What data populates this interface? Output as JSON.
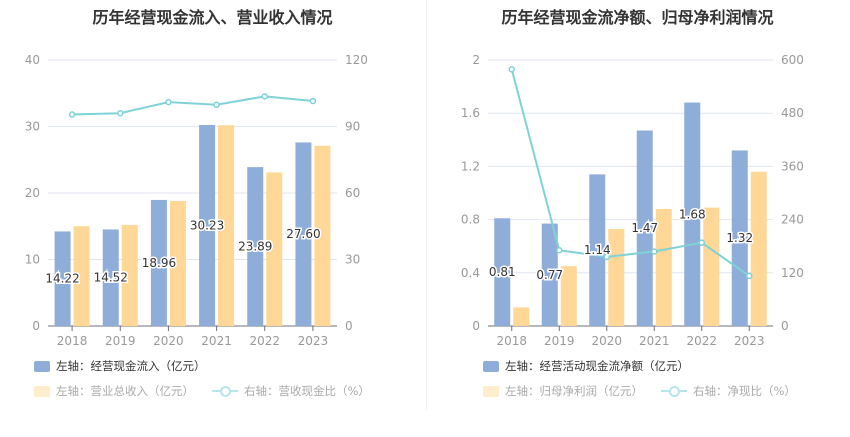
{
  "colors": {
    "bar1": "#8eadd9",
    "bar2": "#ffd796",
    "line": "#7fd3d8",
    "grid": "#e0e6f1",
    "axis": "#6e7079",
    "tick": "#999999"
  },
  "chart_data": [
    {
      "type": "bar",
      "title": "历年经营现金流入、营业收入情况",
      "categories": [
        "2018",
        "2019",
        "2020",
        "2021",
        "2022",
        "2023"
      ],
      "ylim_left": [
        0,
        40
      ],
      "yticks_left": [
        "0",
        "10",
        "20",
        "30",
        "40"
      ],
      "ylim_right": [
        0,
        120
      ],
      "yticks_right": [
        "0",
        "30",
        "60",
        "90",
        "120"
      ],
      "series": [
        {
          "name": "左轴：经营现金流入（亿元）",
          "axis": "left",
          "kind": "bar",
          "values": [
            14.22,
            14.52,
            18.96,
            30.23,
            23.89,
            27.6
          ],
          "labels": [
            "14.22",
            "14.52",
            "18.96",
            "30.23",
            "23.89",
            "27.60"
          ]
        },
        {
          "name": "左轴：营业总收入（亿元）",
          "axis": "left",
          "kind": "bar",
          "values": [
            15.0,
            15.2,
            18.8,
            30.2,
            23.1,
            27.1
          ]
        },
        {
          "name": "右轴：营收现金比（%）",
          "axis": "right",
          "kind": "line",
          "values": [
            95.4,
            96.0,
            101.0,
            99.8,
            103.6,
            101.5
          ]
        }
      ],
      "legend_placement": "bottom-left"
    },
    {
      "type": "bar",
      "title": "历年经营现金流净额、归母净利润情况",
      "categories": [
        "2018",
        "2019",
        "2020",
        "2021",
        "2022",
        "2023"
      ],
      "ylim_left": [
        0,
        2
      ],
      "yticks_left": [
        "0",
        "0.4",
        "0.8",
        "1.2",
        "1.6",
        "2"
      ],
      "ylim_right": [
        0,
        600
      ],
      "yticks_right": [
        "0",
        "120",
        "240",
        "360",
        "480",
        "600"
      ],
      "series": [
        {
          "name": "左轴：经营活动现金流净额（亿元）",
          "axis": "left",
          "kind": "bar",
          "values": [
            0.81,
            0.77,
            1.14,
            1.47,
            1.68,
            1.32
          ],
          "labels": [
            "0.81",
            "0.77",
            "1.14",
            "1.47",
            "1.68",
            "1.32"
          ]
        },
        {
          "name": "左轴：归母净利润（亿元）",
          "axis": "left",
          "kind": "bar",
          "values": [
            0.14,
            0.45,
            0.73,
            0.88,
            0.89,
            1.16
          ]
        },
        {
          "name": "右轴：净现比（%）",
          "axis": "right",
          "kind": "line",
          "values": [
            579,
            171,
            156,
            168,
            188,
            113
          ]
        }
      ],
      "legend_placement": "bottom-left"
    }
  ]
}
